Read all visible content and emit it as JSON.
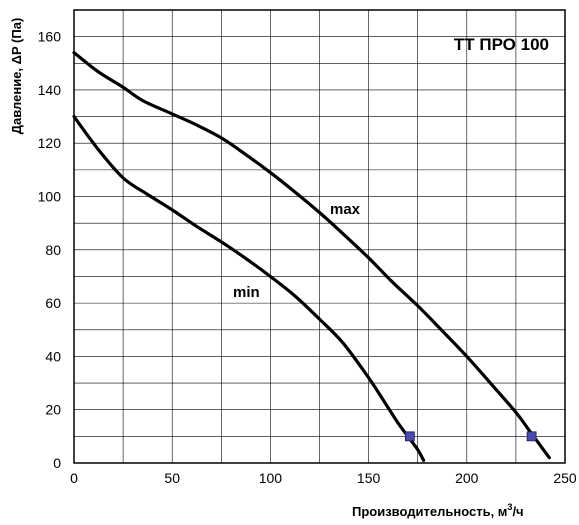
{
  "chart_data": {
    "type": "line",
    "title": "ТТ ПРО 100",
    "xlabel": "Производительность,  м³/ч",
    "xlabel_main": "Производительность,  м",
    "xlabel_sup": "3",
    "xlabel_tail": "/ч",
    "ylabel": "Давление, ΔP (Па)",
    "xlim": [
      0,
      250
    ],
    "ylim": [
      0,
      170
    ],
    "x_ticks": [
      0,
      50,
      100,
      150,
      200,
      250
    ],
    "y_ticks": [
      0,
      20,
      40,
      60,
      80,
      100,
      120,
      140,
      160
    ],
    "x_ticks_text": [
      "0",
      "50",
      "100",
      "150",
      "200",
      "250"
    ],
    "y_ticks_text": [
      "0",
      "20",
      "40",
      "60",
      "80",
      "100",
      "120",
      "140",
      "160"
    ],
    "x_grid_step": 25,
    "y_grid_step": 10,
    "grid": true,
    "series": [
      {
        "name": "max",
        "x": [
          0,
          12,
          25,
          35,
          50,
          62,
          75,
          87,
          100,
          112,
          125,
          137,
          150,
          162,
          175,
          187,
          200,
          212,
          225,
          232,
          237,
          242
        ],
        "y": [
          154,
          147,
          141,
          136,
          131,
          127,
          122,
          116,
          109,
          102,
          94,
          86,
          77,
          68,
          59,
          50,
          40,
          30,
          19,
          12,
          7,
          2
        ],
        "marker": {
          "x": 233,
          "y": 10
        }
      },
      {
        "name": "min",
        "x": [
          0,
          12,
          25,
          37,
          50,
          62,
          75,
          87,
          100,
          112,
          125,
          137,
          150,
          158,
          165,
          170,
          175,
          178
        ],
        "y": [
          130,
          118,
          107,
          101,
          95,
          89,
          83,
          77,
          70,
          63,
          54,
          45,
          32,
          23,
          15,
          10,
          5,
          1
        ],
        "marker": {
          "x": 171,
          "y": 10
        }
      }
    ],
    "series_labels": [
      "max",
      "min"
    ],
    "marker_color": "#4a4aa8"
  }
}
